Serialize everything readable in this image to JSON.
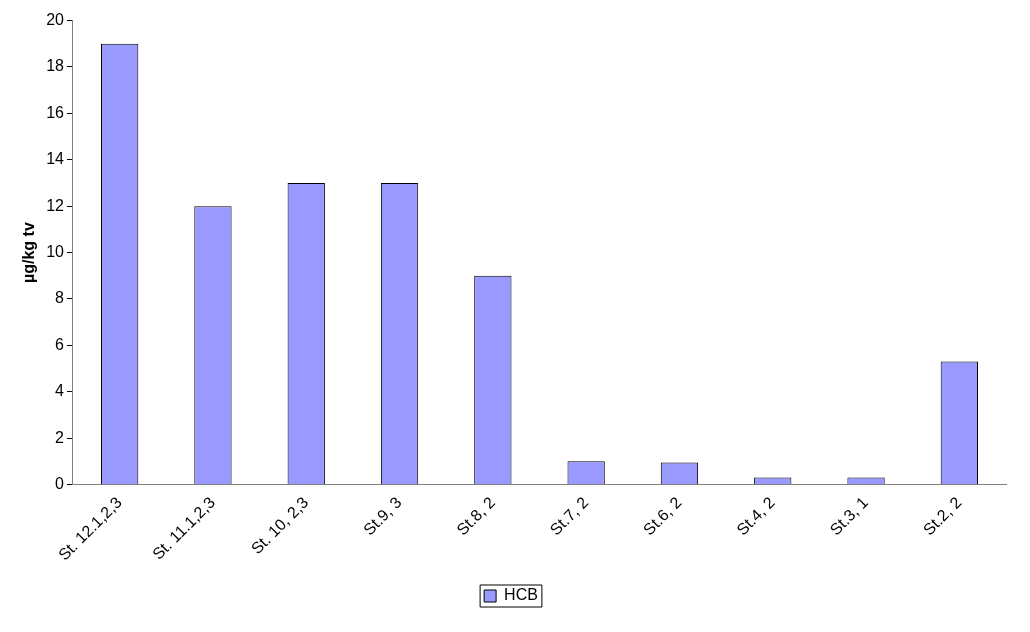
{
  "chart_data": {
    "type": "bar",
    "ylabel": "µg/kg tv",
    "categories": [
      "St. 12.1,2,3",
      "St. 11.1,2,3",
      "St. 10, 2,3",
      "St.9, 3",
      "St.8, 2",
      "St.7, 2",
      "St.6, 2",
      "St.4, 2",
      "St.3, 1",
      "St.2, 2"
    ],
    "series": [
      {
        "name": "HCB",
        "color": "#9999ff",
        "values": [
          19,
          12,
          13,
          13,
          9,
          1,
          0.95,
          0.3,
          0.3,
          5.3
        ]
      }
    ],
    "ylim": [
      0,
      20
    ],
    "yticks": [
      0,
      2,
      4,
      6,
      8,
      10,
      12,
      14,
      16,
      18,
      20
    ],
    "grid": false,
    "legend": "bottom"
  }
}
